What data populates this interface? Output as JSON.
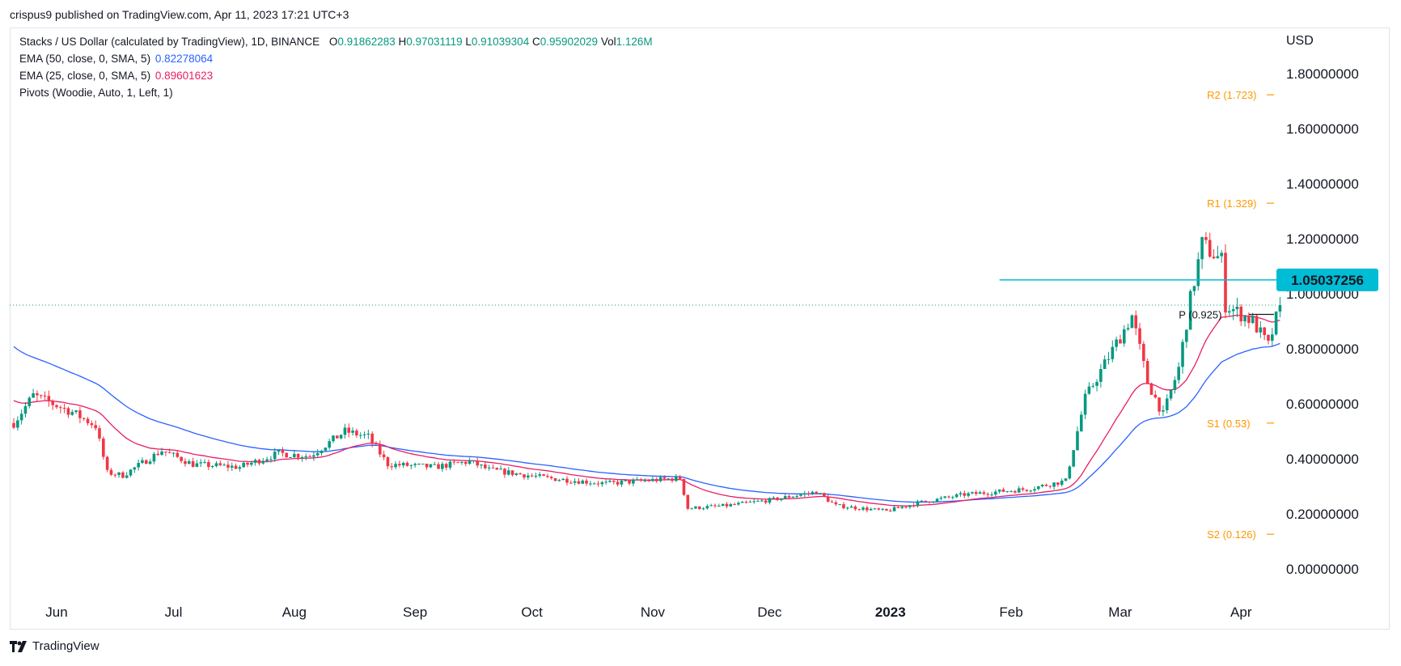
{
  "header": {
    "published_by": "crispus9 published on TradingView.com, Apr 11, 2023 17:21 UTC+3"
  },
  "legend": {
    "symbol": "Stacks / US Dollar (calculated by TradingView), 1D, BINANCE",
    "open_label": "O",
    "open": "0.91862283",
    "high_label": "H",
    "high": "0.97031119",
    "low_label": "L",
    "low": "0.91039304",
    "close_label": "C",
    "close": "0.95902029",
    "vol_label": "Vol",
    "vol": "1.126M",
    "ema50_label": "EMA (50, close, 0, SMA, 5)",
    "ema50_value": "0.82278064",
    "ema25_label": "EMA (25, close, 0, SMA, 5)",
    "ema25_value": "0.89601623",
    "pivots_label": "Pivots (Woodie, Auto, 1, Left, 1)"
  },
  "footer": {
    "brand": "TradingView"
  },
  "colors": {
    "up": "#089981",
    "down": "#f23645",
    "ema50": "#2962ff",
    "ema25": "#e91e63",
    "pivot": "#ff9800",
    "pivot_p": "#131722",
    "resistance": "#00bcd4",
    "text": "#131722"
  },
  "chart_data": {
    "type": "candlestick",
    "title": "Stacks / US Dollar (calculated by TradingView), 1D, BINANCE",
    "currency": "USD",
    "x_labels": [
      "Jun",
      "Jul",
      "Aug",
      "Sep",
      "Oct",
      "Nov",
      "Dec",
      "2023",
      "Feb",
      "Mar",
      "Apr"
    ],
    "y_ticks": [
      "0.00000000",
      "0.20000000",
      "0.40000000",
      "0.60000000",
      "0.80000000",
      "1.00000000",
      "1.20000000",
      "1.40000000",
      "1.60000000",
      "1.80000000"
    ],
    "ylim": [
      -0.06,
      1.94
    ],
    "last_price": 0.959,
    "resistance": {
      "value": 1.05037256,
      "label": "1.05037256"
    },
    "pivots": [
      {
        "label": "R2 (1.723)",
        "value": 1.723
      },
      {
        "label": "R1 (1.329)",
        "value": 1.329
      },
      {
        "label": "P (0.925)",
        "value": 0.925
      },
      {
        "label": "S1 (0.53)",
        "value": 0.53
      },
      {
        "label": "S2 (0.126)",
        "value": 0.126
      }
    ],
    "price_path_anchors": [
      [
        "2022-05-21",
        0.53
      ],
      [
        "2022-05-26",
        0.63
      ],
      [
        "2022-06-05",
        0.57
      ],
      [
        "2022-06-11",
        0.52
      ],
      [
        "2022-06-14",
        0.35
      ],
      [
        "2022-06-18",
        0.34
      ],
      [
        "2022-06-28",
        0.43
      ],
      [
        "2022-07-06",
        0.38
      ],
      [
        "2022-07-18",
        0.37
      ],
      [
        "2022-07-28",
        0.42
      ],
      [
        "2022-08-05",
        0.41
      ],
      [
        "2022-08-14",
        0.5
      ],
      [
        "2022-08-20",
        0.48
      ],
      [
        "2022-08-25",
        0.38
      ],
      [
        "2022-09-06",
        0.37
      ],
      [
        "2022-09-15",
        0.39
      ],
      [
        "2022-09-20",
        0.36
      ],
      [
        "2022-10-05",
        0.33
      ],
      [
        "2022-10-20",
        0.31
      ],
      [
        "2022-11-08",
        0.33
      ],
      [
        "2022-11-10",
        0.22
      ],
      [
        "2022-11-20",
        0.23
      ],
      [
        "2022-12-01",
        0.25
      ],
      [
        "2022-12-13",
        0.28
      ],
      [
        "2022-12-18",
        0.23
      ],
      [
        "2022-12-31",
        0.21
      ],
      [
        "2023-01-08",
        0.24
      ],
      [
        "2023-01-20",
        0.27
      ],
      [
        "2023-02-05",
        0.29
      ],
      [
        "2023-02-15",
        0.32
      ],
      [
        "2023-02-20",
        0.62
      ],
      [
        "2023-02-26",
        0.77
      ],
      [
        "2023-03-04",
        0.92
      ],
      [
        "2023-03-08",
        0.68
      ],
      [
        "2023-03-12",
        0.56
      ],
      [
        "2023-03-16",
        0.73
      ],
      [
        "2023-03-19",
        0.98
      ],
      [
        "2023-03-22",
        1.18
      ],
      [
        "2023-03-27",
        1.12
      ],
      [
        "2023-03-28",
        0.96
      ],
      [
        "2023-04-04",
        0.9
      ],
      [
        "2023-04-08",
        0.81
      ],
      [
        "2023-04-11",
        0.959
      ]
    ]
  }
}
